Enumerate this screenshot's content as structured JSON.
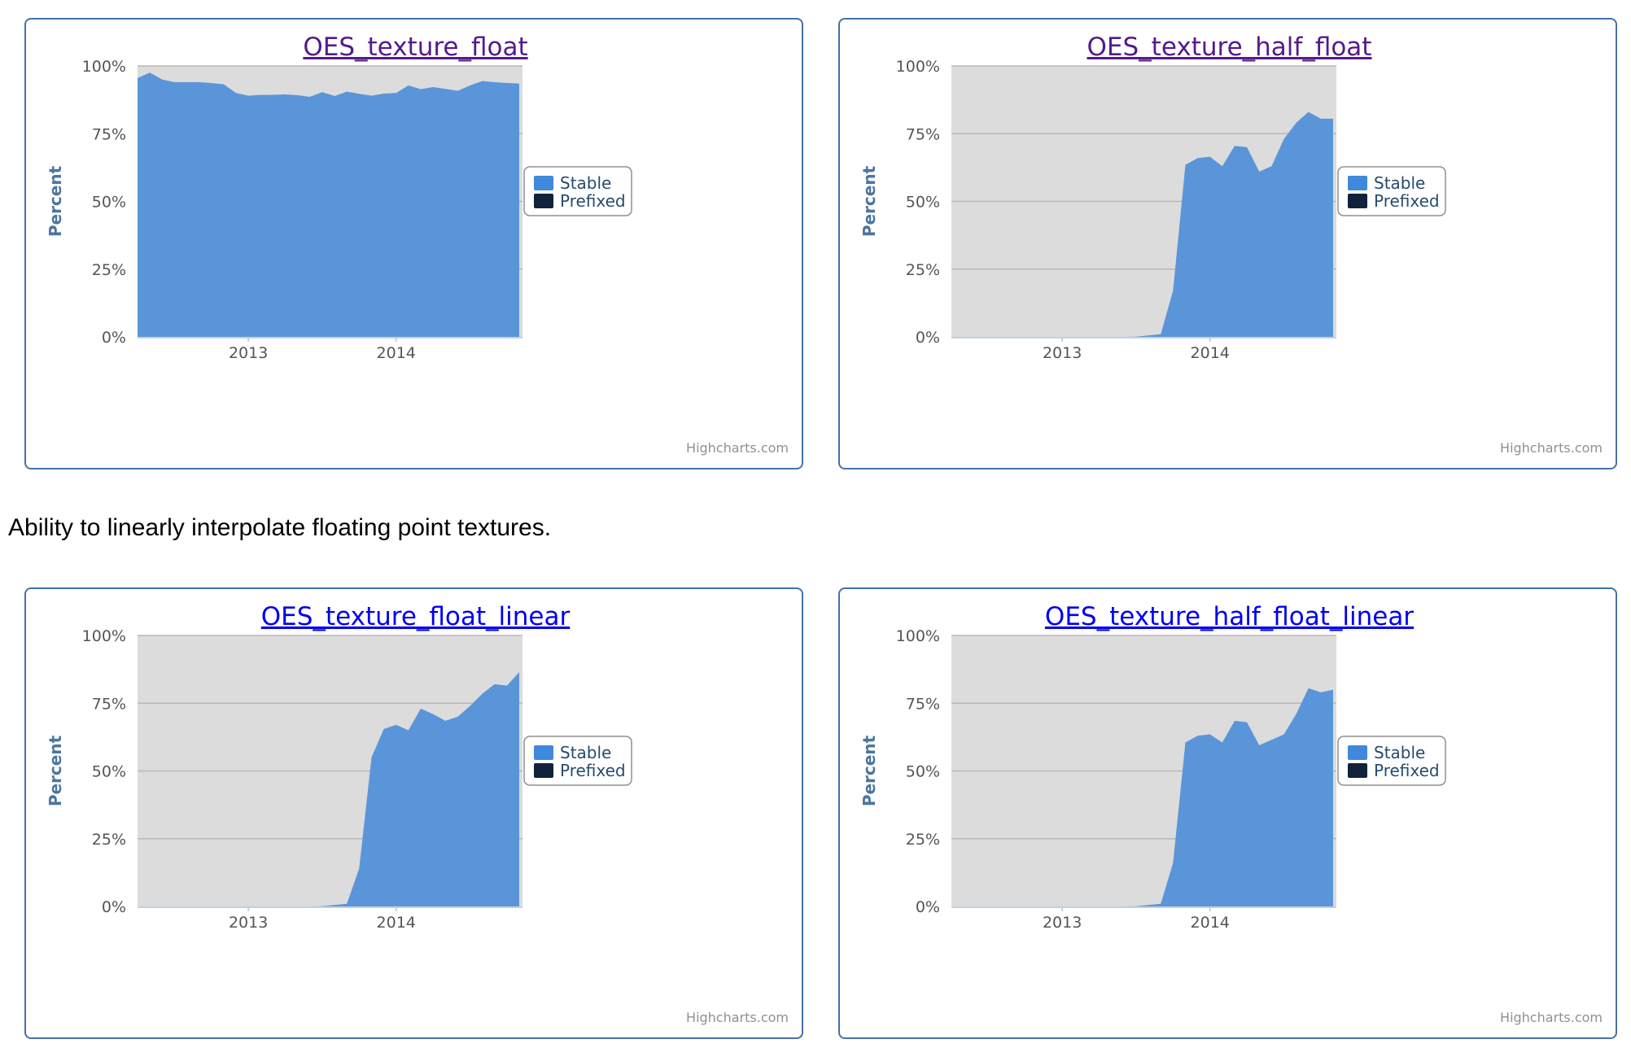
{
  "section_description": "Ability to linearly interpolate floating point textures.",
  "colors": {
    "stable": "#5b95d9",
    "stable_swatch": "#3f88dc",
    "prefixed": "#10233a",
    "plot_bg": "#dcdcdc",
    "border": "#4572a7",
    "axis_label": "#4d759e",
    "title_visited": "#551a8b",
    "title_link": "#0000ee"
  },
  "common": {
    "ylabel": "Percent",
    "credits": "Highcharts.com",
    "legend": [
      "Stable",
      "Prefixed"
    ]
  },
  "chart_data": [
    {
      "type": "area",
      "title": "OES_texture_float",
      "title_style": "visited",
      "ylabel": "Percent",
      "x_range": [
        "2012-04",
        "2014-11"
      ],
      "xticks": [
        "2013",
        "2014"
      ],
      "yticks": [
        "0%",
        "25%",
        "50%",
        "75%",
        "100%"
      ],
      "ylim": [
        0,
        100
      ],
      "grid": true,
      "legend_position": "right",
      "series": [
        {
          "name": "Stable",
          "x": [
            "2012-04",
            "2012-05",
            "2012-06",
            "2012-07",
            "2012-08",
            "2012-09",
            "2012-10",
            "2012-11",
            "2012-12",
            "2013-01",
            "2013-02",
            "2013-03",
            "2013-04",
            "2013-05",
            "2013-06",
            "2013-07",
            "2013-08",
            "2013-09",
            "2013-10",
            "2013-11",
            "2013-12",
            "2014-01",
            "2014-02",
            "2014-03",
            "2014-04",
            "2014-05",
            "2014-06",
            "2014-07",
            "2014-08",
            "2014-09",
            "2014-10",
            "2014-11"
          ],
          "values": [
            95.5,
            97.5,
            95,
            94,
            94,
            94,
            93.7,
            93.2,
            90,
            89,
            89.3,
            89.3,
            89.5,
            89.2,
            88.6,
            90.3,
            88.9,
            90.5,
            89.7,
            89,
            89.8,
            90,
            92.8,
            91.4,
            92.2,
            91.5,
            90.8,
            92.8,
            94.4,
            94,
            93.7,
            93.5
          ]
        },
        {
          "name": "Prefixed",
          "x": [],
          "values": []
        }
      ]
    },
    {
      "type": "area",
      "title": "OES_texture_half_float",
      "title_style": "visited",
      "ylabel": "Percent",
      "x_range": [
        "2012-04",
        "2014-11"
      ],
      "xticks": [
        "2013",
        "2014"
      ],
      "yticks": [
        "0%",
        "25%",
        "50%",
        "75%",
        "100%"
      ],
      "ylim": [
        0,
        100
      ],
      "grid": true,
      "legend_position": "right",
      "series": [
        {
          "name": "Stable",
          "x": [
            "2012-04",
            "2012-05",
            "2012-06",
            "2012-07",
            "2012-08",
            "2012-09",
            "2012-10",
            "2012-11",
            "2012-12",
            "2013-01",
            "2013-02",
            "2013-03",
            "2013-04",
            "2013-05",
            "2013-06",
            "2013-07",
            "2013-08",
            "2013-09",
            "2013-10",
            "2013-11",
            "2013-12",
            "2014-01",
            "2014-02",
            "2014-03",
            "2014-04",
            "2014-05",
            "2014-06",
            "2014-07",
            "2014-08",
            "2014-09",
            "2014-10",
            "2014-11"
          ],
          "values": [
            0,
            0,
            0,
            0,
            0,
            0,
            0,
            0,
            0,
            0,
            0,
            0,
            0,
            0,
            0,
            0.1,
            0.5,
            1,
            17,
            63.5,
            66,
            66.5,
            63,
            70.5,
            70,
            61,
            63,
            73,
            79,
            83,
            80.5,
            80.5
          ]
        },
        {
          "name": "Prefixed",
          "x": [],
          "values": []
        }
      ]
    },
    {
      "type": "area",
      "title": "OES_texture_float_linear",
      "title_style": "link",
      "ylabel": "Percent",
      "x_range": [
        "2012-04",
        "2014-11"
      ],
      "xticks": [
        "2013",
        "2014"
      ],
      "yticks": [
        "0%",
        "25%",
        "50%",
        "75%",
        "100%"
      ],
      "ylim": [
        0,
        100
      ],
      "grid": true,
      "legend_position": "right",
      "series": [
        {
          "name": "Stable",
          "x": [
            "2012-04",
            "2012-05",
            "2012-06",
            "2012-07",
            "2012-08",
            "2012-09",
            "2012-10",
            "2012-11",
            "2012-12",
            "2013-01",
            "2013-02",
            "2013-03",
            "2013-04",
            "2013-05",
            "2013-06",
            "2013-07",
            "2013-08",
            "2013-09",
            "2013-10",
            "2013-11",
            "2013-12",
            "2014-01",
            "2014-02",
            "2014-03",
            "2014-04",
            "2014-05",
            "2014-06",
            "2014-07",
            "2014-08",
            "2014-09",
            "2014-10",
            "2014-11"
          ],
          "values": [
            0,
            0,
            0,
            0,
            0,
            0,
            0,
            0,
            0,
            0,
            0,
            0,
            0,
            0,
            0,
            0.1,
            0.5,
            1,
            14,
            55,
            65.5,
            67,
            65,
            73,
            71,
            68.5,
            70,
            74,
            78.5,
            82,
            81.5,
            86.5
          ]
        },
        {
          "name": "Prefixed",
          "x": [],
          "values": []
        }
      ]
    },
    {
      "type": "area",
      "title": "OES_texture_half_float_linear",
      "title_style": "link",
      "ylabel": "Percent",
      "x_range": [
        "2012-04",
        "2014-11"
      ],
      "xticks": [
        "2013",
        "2014"
      ],
      "yticks": [
        "0%",
        "25%",
        "50%",
        "75%",
        "100%"
      ],
      "ylim": [
        0,
        100
      ],
      "grid": true,
      "legend_position": "right",
      "series": [
        {
          "name": "Stable",
          "x": [
            "2012-04",
            "2012-05",
            "2012-06",
            "2012-07",
            "2012-08",
            "2012-09",
            "2012-10",
            "2012-11",
            "2012-12",
            "2013-01",
            "2013-02",
            "2013-03",
            "2013-04",
            "2013-05",
            "2013-06",
            "2013-07",
            "2013-08",
            "2013-09",
            "2013-10",
            "2013-11",
            "2013-12",
            "2014-01",
            "2014-02",
            "2014-03",
            "2014-04",
            "2014-05",
            "2014-06",
            "2014-07",
            "2014-08",
            "2014-09",
            "2014-10",
            "2014-11"
          ],
          "values": [
            0,
            0,
            0,
            0,
            0,
            0,
            0,
            0,
            0,
            0,
            0,
            0,
            0,
            0,
            0,
            0.1,
            0.5,
            1,
            16,
            60.5,
            63,
            63.5,
            60.5,
            68.5,
            68,
            59.5,
            61.5,
            63.5,
            71,
            80.5,
            79,
            80
          ]
        },
        {
          "name": "Prefixed",
          "x": [],
          "values": []
        }
      ]
    }
  ]
}
